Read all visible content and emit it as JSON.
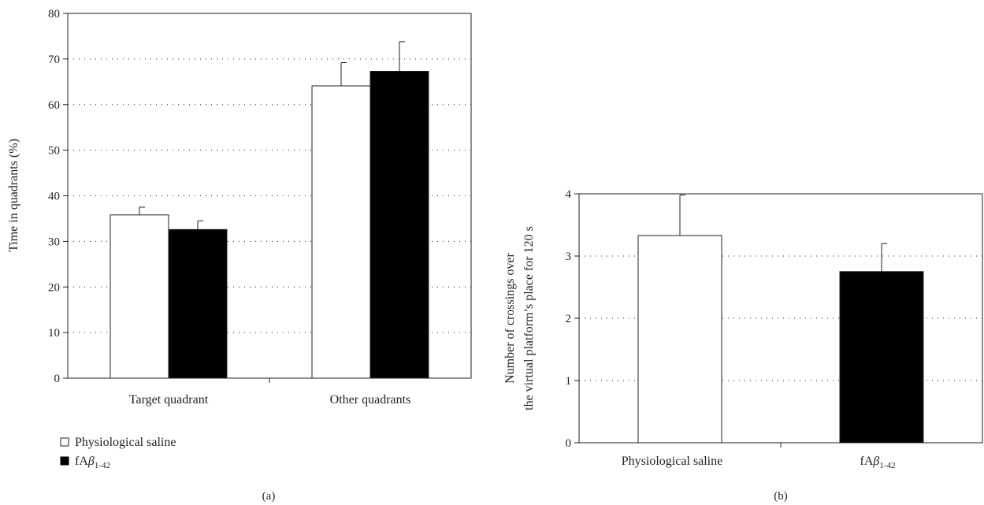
{
  "chart_data": [
    {
      "type": "bar",
      "panel_label": "(a)",
      "ylabel": "Time in quadrants (%)",
      "xlabel": "",
      "ylim": [
        0,
        80
      ],
      "yticks": [
        "0",
        "10",
        "20",
        "30",
        "40",
        "50",
        "60",
        "70",
        "80"
      ],
      "grid": true,
      "categories": [
        "Target quadrant",
        "Other quadrants"
      ],
      "series": [
        {
          "name": "Physiological saline",
          "values": [
            35.8,
            64.1
          ],
          "errors": [
            1.7,
            5.1
          ],
          "color": "#ffffff"
        },
        {
          "name": "fAβ1-42",
          "name_main": "fA",
          "name_greek": "β",
          "name_sub": "1-42",
          "values": [
            32.6,
            67.3
          ],
          "errors": [
            1.9,
            6.5
          ],
          "color": "#000000"
        }
      ],
      "legend_position": "bottom-left"
    },
    {
      "type": "bar",
      "panel_label": "(b)",
      "ylabel_lines": [
        "Number of crossings over",
        "the virtual platform’s place for 120 s"
      ],
      "xlabel": "",
      "ylim": [
        0,
        4
      ],
      "yticks": [
        "0",
        "1",
        "2",
        "3",
        "4"
      ],
      "grid": true,
      "categories": [
        {
          "main": "Physiological saline",
          "greek": "",
          "sub": ""
        },
        {
          "main": "fA",
          "greek": "β",
          "sub": "1-42"
        }
      ],
      "values": [
        3.33,
        2.75
      ],
      "errors": [
        0.65,
        0.45
      ],
      "colors": [
        "#ffffff",
        "#000000"
      ]
    }
  ]
}
